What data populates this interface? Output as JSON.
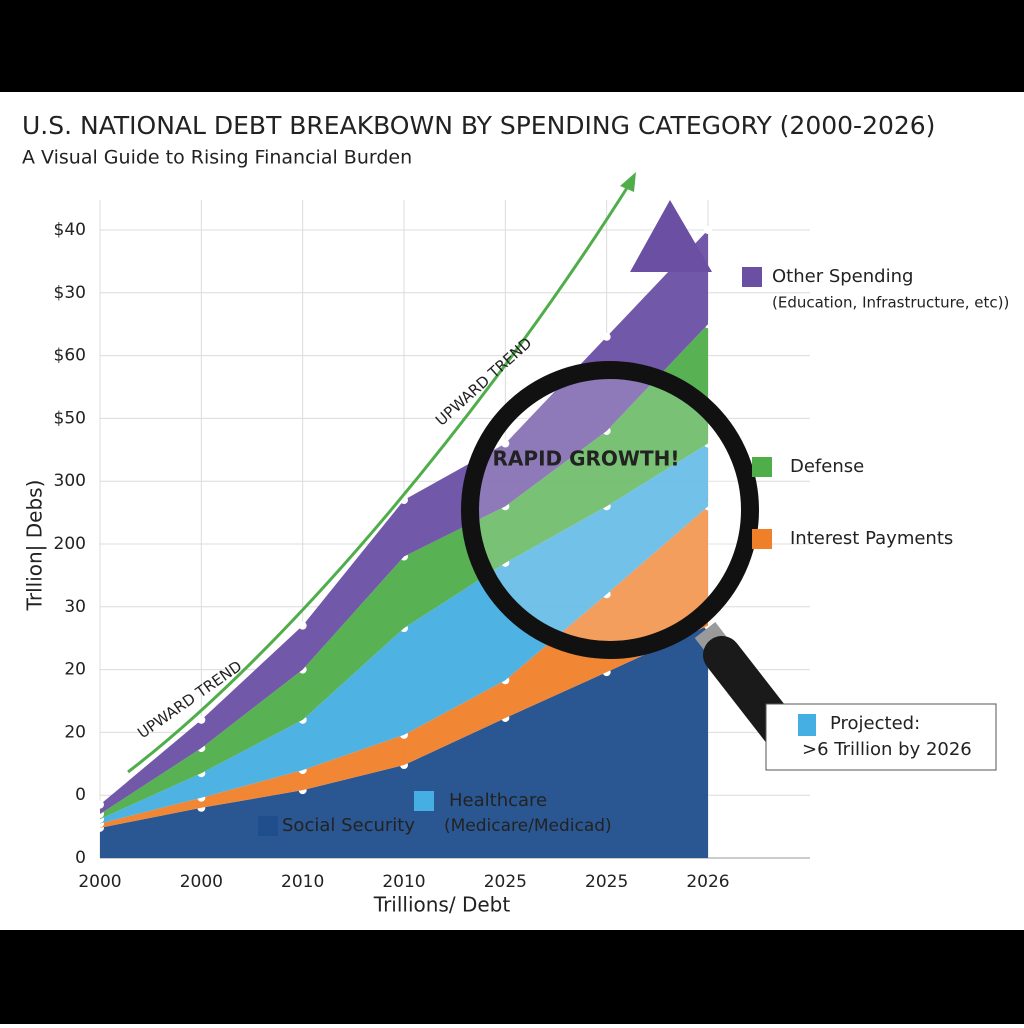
{
  "chart_data": {
    "type": "stacked-area",
    "title": "U.S. NATIONAL DEBT BREAKBOWN BY SPENDING CATEGORY (2000-2026)",
    "subtitle": "A Visual Guide to Rising Financial Burden",
    "y_label": "Trllion| Debs)",
    "x_label": "Trillions/ Debt",
    "categories": [
      "2000",
      "2000",
      "2010",
      "2010",
      "2025",
      "2025",
      "2026"
    ],
    "ylim": [
      0,
      10
    ],
    "yticks": [
      0,
      {
        "value": 1,
        "label": "0"
      },
      {
        "value": 2,
        "label": "20"
      },
      {
        "value": 3,
        "label": "20"
      },
      {
        "value": 4,
        "label": "30"
      },
      {
        "value": 5,
        "label": "200"
      },
      {
        "value": 6,
        "label": "300"
      },
      {
        "value": 7,
        "label": "$50"
      },
      {
        "value": 8,
        "label": "$60"
      },
      {
        "value": 9,
        "label": "$30"
      },
      {
        "value": 10,
        "label": "$40"
      }
    ],
    "grid": true,
    "series": [
      {
        "name": "Social Security",
        "color": "#1f4e8c",
        "values": [
          0.48,
          0.8,
          1.08,
          1.48,
          2.23,
          2.96,
          3.7
        ]
      },
      {
        "name": "Interest Payments",
        "color": "#f07f2a",
        "values": [
          0.07,
          0.16,
          0.32,
          0.48,
          0.6,
          1.24,
          1.9
        ]
      },
      {
        "name": "Healthcare",
        "color": "#45aee2",
        "values": [
          0.07,
          0.39,
          0.8,
          1.7,
          1.87,
          1.4,
          1.0
        ]
      },
      {
        "name": "Defense",
        "color": "#4fae4a",
        "values": [
          0.08,
          0.4,
          0.8,
          1.14,
          0.9,
          1.2,
          1.9
        ]
      },
      {
        "name": "Other Spending",
        "color": "#6a4fa3",
        "values": [
          0.15,
          0.45,
          0.7,
          0.9,
          1.0,
          1.5,
          1.5
        ]
      }
    ],
    "annotations": [
      "UPWARD TREND",
      "UPWARD TREND",
      "RAPID GROWTH!",
      "Projected:",
      ">6 Trillion by 2026",
      "(Education, Infrastructure, etc))",
      "(Medicare/Medicad)"
    ]
  }
}
